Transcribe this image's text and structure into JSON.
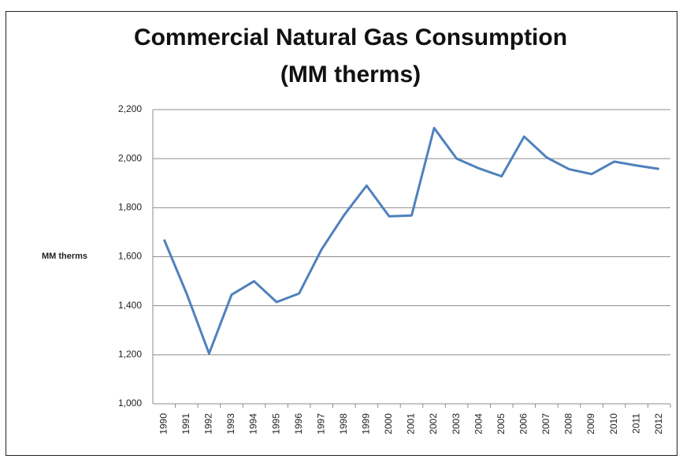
{
  "chart_data": {
    "type": "line",
    "title": "Commercial Natural Gas Consumption (MM therms)",
    "y_label": "MM therms",
    "categories": [
      "1990",
      "1991",
      "1992",
      "1993",
      "1994",
      "1995",
      "1996",
      "1997",
      "1998",
      "1999",
      "2000",
      "2001",
      "2002",
      "2003",
      "2004",
      "2005",
      "2006",
      "2007",
      "2008",
      "2009",
      "2010",
      "2011",
      "2012"
    ],
    "series": [
      {
        "name": "Commercial Natural Gas Consumption",
        "color": "#4f81bd",
        "values": [
          1670,
          1450,
          1205,
          1445,
          1500,
          1415,
          1450,
          1630,
          1770,
          1890,
          1765,
          1768,
          2125,
          2000,
          1960,
          1928,
          2090,
          2005,
          1957,
          1937,
          1988,
          1972,
          1958
        ]
      }
    ],
    "ylim": [
      1000,
      2200
    ],
    "yticks": [
      {
        "value": 1000,
        "label": "1,000"
      },
      {
        "value": 1200,
        "label": "1,200"
      },
      {
        "value": 1400,
        "label": "1,400"
      },
      {
        "value": 1600,
        "label": "1,600"
      },
      {
        "value": 1800,
        "label": "1,800"
      },
      {
        "value": 2000,
        "label": "2,000"
      },
      {
        "value": 2200,
        "label": "2,200"
      }
    ],
    "grid": true
  }
}
